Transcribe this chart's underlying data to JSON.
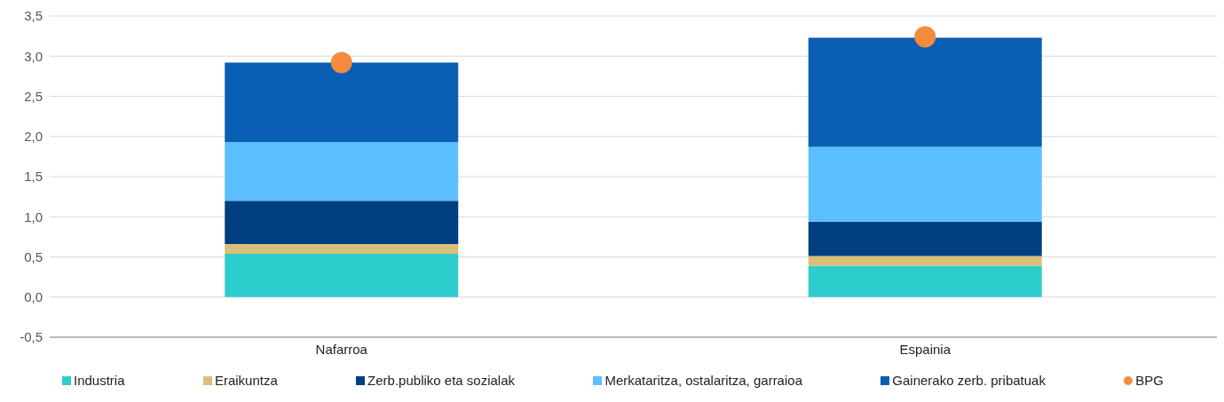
{
  "chart_data": {
    "type": "bar",
    "stacked": true,
    "categories": [
      "Nafarroa",
      "Espainia"
    ],
    "series": [
      {
        "name": "Industria",
        "color": "#2ecdcd",
        "values": [
          0.54,
          0.39
        ]
      },
      {
        "name": "Eraikuntza",
        "color": "#d9bf77",
        "values": [
          0.12,
          0.12
        ]
      },
      {
        "name": "Zerb.publiko eta sozialak",
        "color": "#003f7f",
        "values": [
          0.54,
          0.43
        ]
      },
      {
        "name": "Merkataritza, ostalaritza, garraioa",
        "color": "#5bbfff",
        "values": [
          0.73,
          0.93
        ]
      },
      {
        "name": "Gainerako zerb. pribatuak",
        "color": "#0a5fb4",
        "values": [
          0.99,
          1.36
        ]
      },
      {
        "name": "BPG",
        "type": "scatter",
        "color": "#f58b3c",
        "x": [
          "Nafarroa",
          "Espainia"
        ],
        "values": [
          2.92,
          3.24
        ],
        "marker": "circle"
      }
    ],
    "ylim": [
      -0.5,
      3.5
    ],
    "yticks": [
      {
        "value": -0.5,
        "label": "-0,5"
      },
      {
        "value": 0,
        "label": "0,0"
      },
      {
        "value": 0.5,
        "label": "0,5"
      },
      {
        "value": 1,
        "label": "1,0"
      },
      {
        "value": 1.5,
        "label": "1,5"
      },
      {
        "value": 2,
        "label": "2,0"
      },
      {
        "value": 2.5,
        "label": "2,5"
      },
      {
        "value": 3,
        "label": "3,0"
      },
      {
        "value": 3.5,
        "label": "3,5"
      }
    ],
    "grid": "y",
    "legend": "bottom"
  }
}
